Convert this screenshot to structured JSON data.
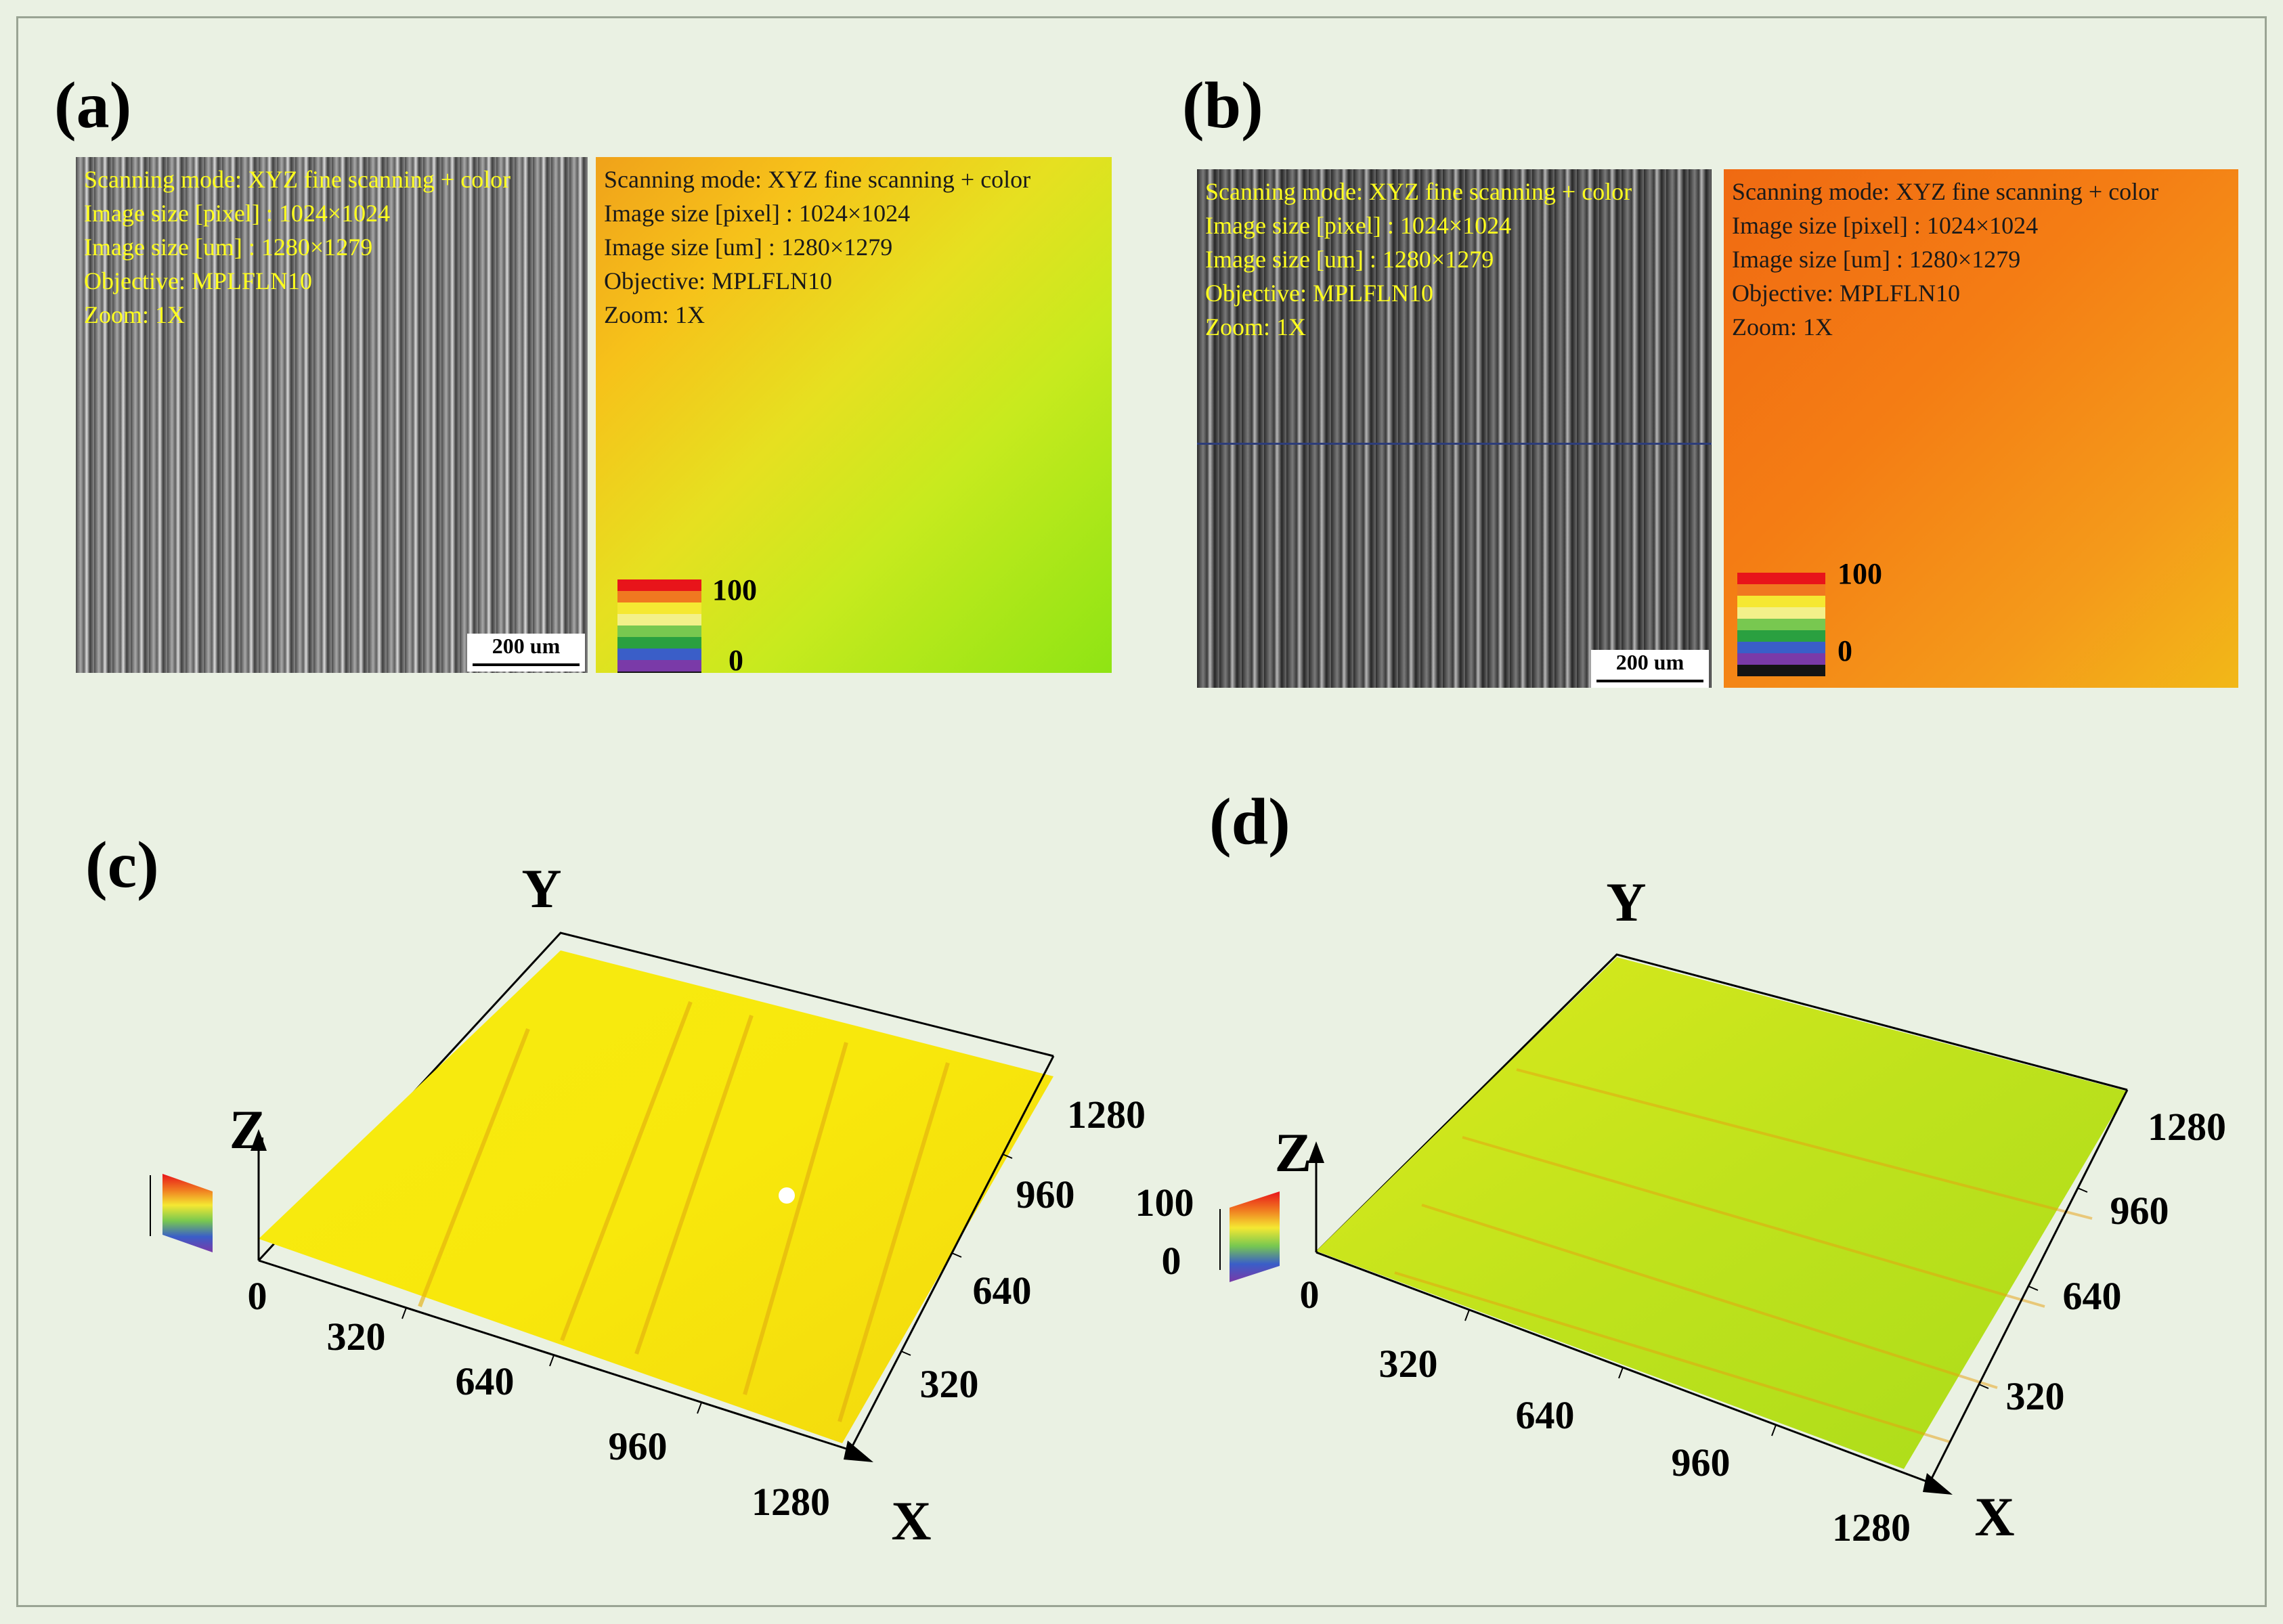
{
  "panels": {
    "a": {
      "label": "(a)",
      "micro_overlay": [
        "Scanning mode: XYZ fine scanning + color",
        "Image size [pixel] : 1024×1024",
        "Image size [um] : 1280×1279",
        "Objective: MPLFLN10",
        "Zoom: 1X"
      ],
      "height_overlay": [
        "Scanning mode: XYZ fine scanning + color",
        "Image size [pixel] : 1024×1024",
        "Image size [um] : 1280×1279",
        "Objective: MPLFLN10",
        "Zoom: 1X"
      ],
      "scale_bar": "200 um",
      "colorbar_max": "100",
      "colorbar_min": "0"
    },
    "b": {
      "label": "(b)",
      "micro_overlay": [
        "Scanning mode: XYZ fine scanning + color",
        "Image size [pixel] : 1024×1024",
        "Image size [um] : 1280×1279",
        "Objective: MPLFLN10",
        "Zoom: 1X"
      ],
      "height_overlay": [
        "Scanning mode: XYZ fine scanning + color",
        "Image size [pixel] : 1024×1024",
        "Image size [um] : 1280×1279",
        "Objective: MPLFLN10",
        "Zoom: 1X"
      ],
      "scale_bar": "200 um",
      "colorbar_max": "100",
      "colorbar_min": "0"
    },
    "c": {
      "label": "(c)",
      "axis_x": "X",
      "axis_y": "Y",
      "axis_z": "Z",
      "x_ticks": [
        "0",
        "320",
        "640",
        "960",
        "1280"
      ],
      "y_ticks": [
        "320",
        "640",
        "960",
        "1280"
      ]
    },
    "d": {
      "label": "(d)",
      "axis_x": "X",
      "axis_y": "Y",
      "axis_z": "Z",
      "x_ticks": [
        "0",
        "320",
        "640",
        "960",
        "1280"
      ],
      "y_ticks": [
        "320",
        "640",
        "960",
        "1280"
      ],
      "z_max": "100",
      "z_min": "0"
    }
  },
  "colors": {
    "background": "#eaf1e3",
    "overlay_text": "#ffff1e",
    "colorbar": [
      "#e8141a",
      "#f07820",
      "#f5e832",
      "#f3f08a",
      "#78c850",
      "#2aa040",
      "#3a5ec8",
      "#7a3aa8",
      "#141414"
    ]
  }
}
